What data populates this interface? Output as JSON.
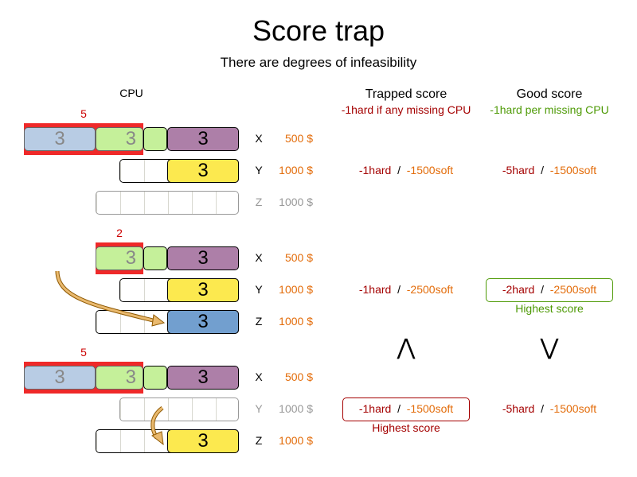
{
  "title": "Score trap",
  "subtitle": "There are degrees of infeasibility",
  "cpu_header": "CPU",
  "trapped": {
    "title": "Trapped score",
    "rule": "-1hard if any missing CPU"
  },
  "good": {
    "title": "Good score",
    "rule": "-1hard per missing CPU"
  },
  "process_size": "3",
  "computers": {
    "x": {
      "name": "X",
      "cost": "500 $"
    },
    "y": {
      "name": "Y",
      "cost": "1000 $"
    },
    "z": {
      "name": "Z",
      "cost": "1000 $"
    }
  },
  "scenarios": [
    {
      "missing": "5",
      "trapped": {
        "hard": "-1hard",
        "soft": "-1500soft"
      },
      "good": {
        "hard": "-5hard",
        "soft": "-1500soft"
      }
    },
    {
      "missing": "2",
      "trapped": {
        "hard": "-1hard",
        "soft": "-2500soft"
      },
      "good": {
        "hard": "-2hard",
        "soft": "-2500soft"
      }
    },
    {
      "missing": "5",
      "trapped": {
        "hard": "-1hard",
        "soft": "-1500soft"
      },
      "good": {
        "hard": "-5hard",
        "soft": "-1500soft"
      }
    }
  ],
  "separator": "/",
  "highest_label": "Highest score",
  "comparison": {
    "trapped": "⋀",
    "good": "⋁"
  },
  "colors": {
    "overload": "#ef2929",
    "hard": "#a40000",
    "soft": "#e36c0a",
    "good_rule": "#4e9a06",
    "arrow": "#e9b96e"
  }
}
